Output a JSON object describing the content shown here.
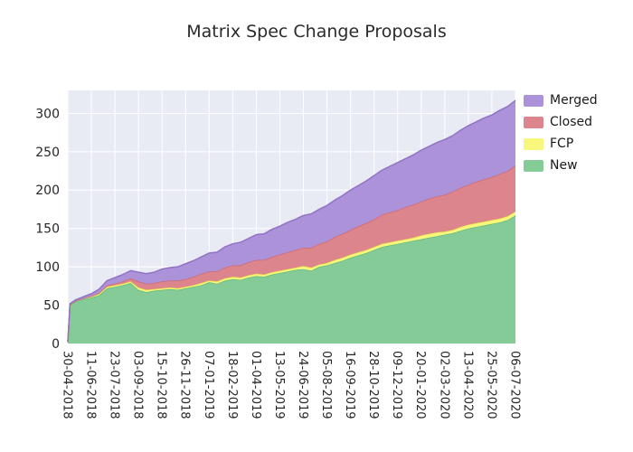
{
  "title": "Matrix Spec Change Proposals",
  "colors": {
    "plot_background": "#e9ebf4",
    "grid": "#ffffff",
    "tick_text": "#262626",
    "title_text": "#2b2b2b"
  },
  "legend": {
    "position": "upper-right-outside",
    "items": [
      {
        "label": "Merged",
        "color": "#ab92d9"
      },
      {
        "label": "Closed",
        "color": "#dd858c"
      },
      {
        "label": "FCP",
        "color": "#f8f77c"
      },
      {
        "label": "New",
        "color": "#85cb97"
      }
    ]
  },
  "chart_data": {
    "type": "area",
    "stacked": true,
    "title": "Matrix Spec Change Proposals",
    "xlabel": "",
    "ylabel": "",
    "grid": true,
    "ylim": [
      0,
      330
    ],
    "yticks": [
      0,
      50,
      100,
      150,
      200,
      250,
      300
    ],
    "x_tick_days_interval": 42,
    "x_tick_labels": [
      "30-04-2018",
      "11-06-2018",
      "23-07-2018",
      "03-09-2018",
      "15-10-2018",
      "26-11-2018",
      "07-01-2019",
      "18-02-2019",
      "01-04-2019",
      "13-05-2019",
      "24-06-2019",
      "05-08-2019",
      "16-09-2019",
      "28-10-2019",
      "09-12-2019",
      "20-01-2020",
      "02-03-2020",
      "13-04-2020",
      "25-05-2020",
      "06-07-2020"
    ],
    "x_days": [
      0,
      4,
      14,
      28,
      42,
      56,
      70,
      84,
      98,
      112,
      126,
      140,
      154,
      168,
      182,
      196,
      210,
      224,
      238,
      252,
      266,
      280,
      294,
      308,
      322,
      336,
      350,
      364,
      378,
      392,
      406,
      420,
      434,
      448,
      462,
      476,
      490,
      504,
      518,
      532,
      546,
      560,
      574,
      588,
      602,
      616,
      630,
      644,
      658,
      672,
      686,
      700,
      714,
      728,
      742,
      756,
      770,
      784,
      798
    ],
    "stack_order_bottom_to_top": [
      "New",
      "FCP",
      "Closed",
      "Merged"
    ],
    "series": [
      {
        "name": "New",
        "fill": "#85cb97",
        "stroke": "#5fba7d",
        "values": [
          2,
          50,
          55,
          58,
          60,
          63,
          72,
          74,
          76,
          79,
          70,
          67,
          69,
          70,
          71,
          70,
          72,
          74,
          76,
          80,
          78,
          82,
          84,
          83,
          86,
          88,
          87,
          90,
          92,
          94,
          96,
          97,
          95,
          100,
          102,
          105,
          108,
          112,
          115,
          118,
          122,
          126,
          128,
          130,
          132,
          134,
          136,
          138,
          140,
          142,
          144,
          147,
          150,
          152,
          154,
          156,
          158,
          161,
          167
        ]
      },
      {
        "name": "FCP",
        "fill": "#f8f77c",
        "stroke": "#e6e34f",
        "values": [
          0,
          1,
          1,
          1,
          1,
          2,
          2,
          2,
          2,
          2,
          3,
          3,
          2,
          2,
          2,
          2,
          2,
          2,
          3,
          2,
          3,
          3,
          3,
          3,
          3,
          3,
          3,
          3,
          3,
          3,
          3,
          4,
          4,
          3,
          3,
          4,
          4,
          4,
          4,
          4,
          4,
          4,
          4,
          4,
          4,
          4,
          5,
          5,
          5,
          4,
          4,
          5,
          5,
          5,
          5,
          5,
          5,
          5,
          5
        ]
      },
      {
        "name": "Closed",
        "fill": "#dd858c",
        "stroke": "#d06a72",
        "values": [
          0,
          0,
          0,
          0,
          1,
          1,
          2,
          2,
          3,
          4,
          8,
          8,
          8,
          9,
          9,
          10,
          10,
          11,
          12,
          12,
          13,
          14,
          15,
          16,
          17,
          18,
          19,
          20,
          21,
          22,
          23,
          24,
          26,
          27,
          28,
          30,
          31,
          32,
          34,
          35,
          36,
          38,
          39,
          40,
          42,
          43,
          44,
          46,
          47,
          48,
          50,
          51,
          52,
          54,
          55,
          56,
          58,
          59,
          60
        ]
      },
      {
        "name": "Merged",
        "fill": "#ab92d9",
        "stroke": "#9172c4",
        "values": [
          0,
          1,
          1,
          2,
          3,
          5,
          6,
          8,
          9,
          10,
          12,
          13,
          14,
          16,
          17,
          18,
          20,
          21,
          22,
          24,
          25,
          27,
          28,
          30,
          31,
          33,
          34,
          36,
          37,
          39,
          40,
          42,
          44,
          45,
          47,
          48,
          50,
          52,
          53,
          55,
          57,
          58,
          60,
          62,
          63,
          65,
          67,
          68,
          70,
          72,
          73,
          75,
          77,
          78,
          80,
          81,
          83,
          84,
          85
        ]
      }
    ]
  }
}
